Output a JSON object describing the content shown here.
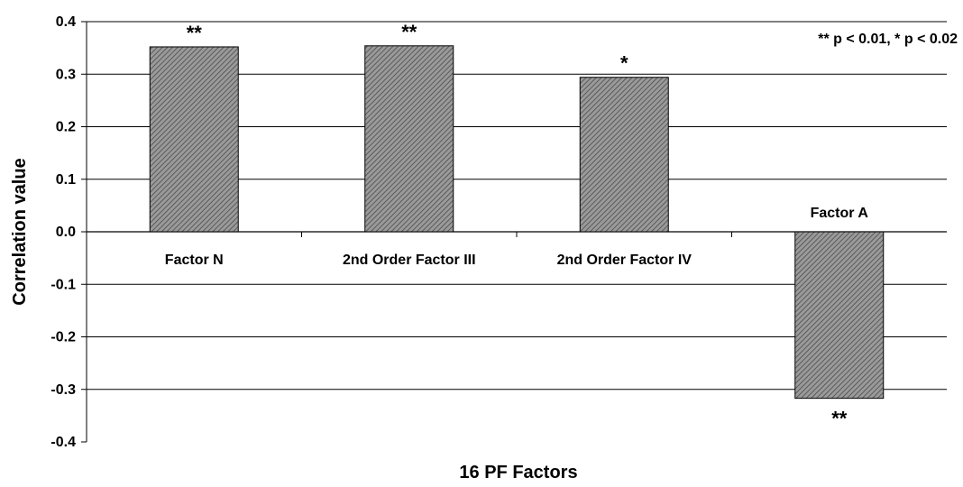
{
  "chart_data": {
    "type": "bar",
    "categories": [
      "Factor N",
      "2nd Order Factor III",
      "2nd Order Factor IV",
      "Factor A"
    ],
    "values": [
      0.352,
      0.354,
      0.294,
      -0.317
    ],
    "significance": [
      "**",
      "**",
      "*",
      "**"
    ],
    "title": "",
    "xlabel": "16 PF Factors",
    "ylabel": "Correlation value",
    "ylim": [
      -0.4,
      0.4
    ],
    "yticks": [
      "0.4",
      "0.3",
      "0.2",
      "0.1",
      "0.0",
      "-0.1",
      "-0.2",
      "-0.3",
      "-0.4"
    ],
    "yticks_values": [
      0.4,
      0.3,
      0.2,
      0.1,
      0.0,
      -0.1,
      -0.2,
      -0.3,
      -0.4
    ],
    "grid": true,
    "legend_note": "** p < 0.01, * p < 0.02",
    "bar_fill": "#808080",
    "hatch_color": "#5a5a5a"
  }
}
